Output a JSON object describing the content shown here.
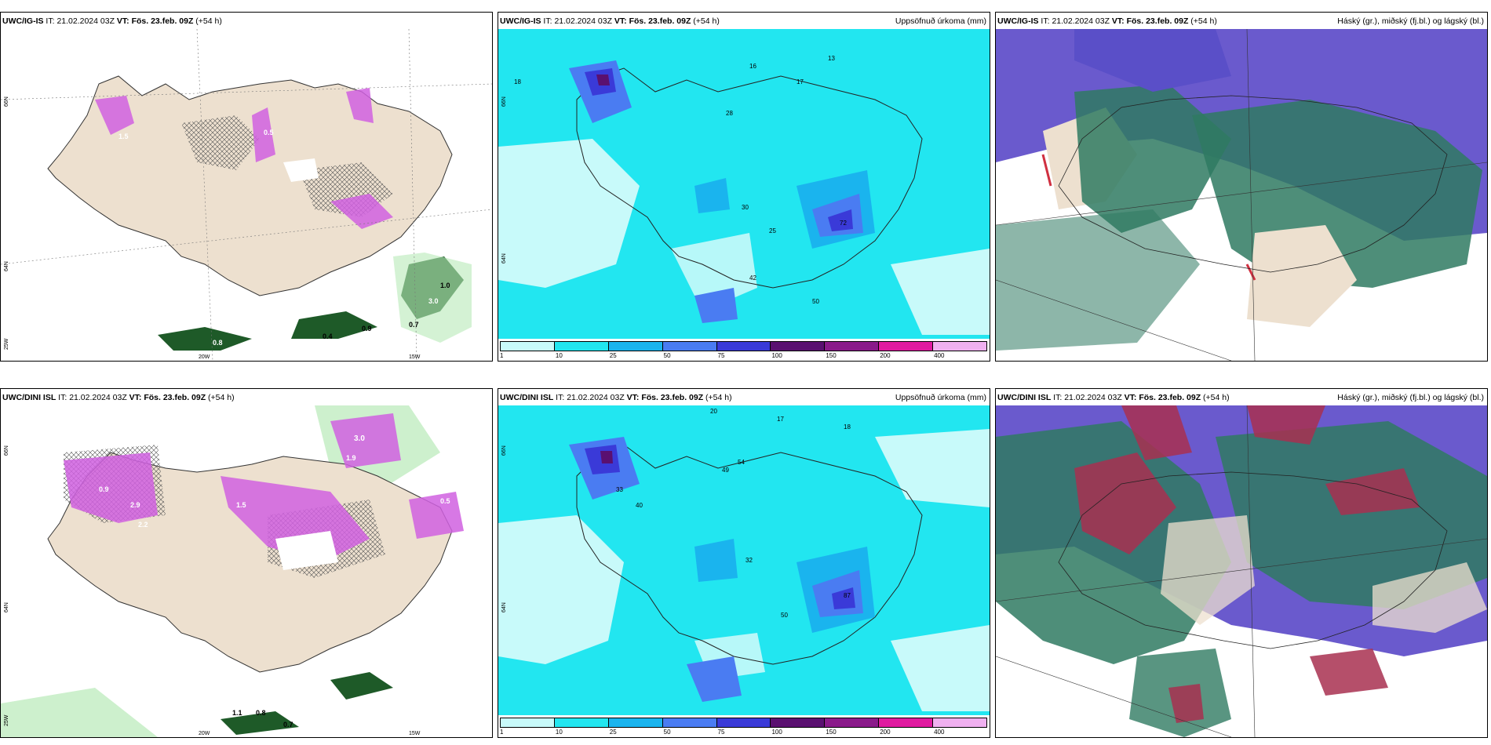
{
  "panels": [
    {
      "id": "ig-cloud",
      "model": "UWC/IG-IS",
      "it_label": "IT:",
      "it_value": "21.02.2024 03Z",
      "vt_label": "VT:",
      "vt_value": "Fös. 23.feb. 09Z",
      "lead": "(+54 h)",
      "right_title": "",
      "lat_labels": [
        "66N",
        "64N",
        "25W"
      ],
      "lon_labels": [
        "20W",
        "15W"
      ],
      "values": [
        "1.5",
        "0.5",
        "1.0",
        "0.8",
        "3.0",
        "0.7",
        "0.9",
        "0.4"
      ]
    },
    {
      "id": "ig-precip",
      "model": "UWC/IG-IS",
      "it_label": "IT:",
      "it_value": "21.02.2024 03Z",
      "vt_label": "VT:",
      "vt_value": "Fös. 23.feb. 09Z",
      "lead": "(+54 h)",
      "right_title": "Uppsöfnuð úrkoma (mm)",
      "lat_labels": [
        "66N",
        "64N"
      ],
      "lon_labels": [],
      "values": [
        "18",
        "16",
        "28",
        "17",
        "13",
        "30",
        "25",
        "42",
        "50",
        "72"
      ]
    },
    {
      "id": "ig-clouds-layers",
      "model": "UWC/IG-IS",
      "it_label": "IT:",
      "it_value": "21.02.2024 03Z",
      "vt_label": "VT:",
      "vt_value": "Fös. 23.feb. 09Z",
      "lead": "(+54 h)",
      "right_title": "Háský (gr.), miðský (fj.bl.) og lágský (bl.)",
      "lat_labels": [],
      "lon_labels": [],
      "values": []
    },
    {
      "id": "dini-cloud",
      "model": "UWC/DINI ISL",
      "it_label": "IT:",
      "it_value": "21.02.2024 03Z",
      "vt_label": "VT:",
      "vt_value": "Fös. 23.feb. 09Z",
      "lead": "(+54 h)",
      "right_title": "",
      "lat_labels": [
        "66N",
        "64N",
        "25W"
      ],
      "lon_labels": [
        "20W",
        "15W"
      ],
      "values": [
        "3.0",
        "1.9",
        "2.9",
        "1.5",
        "0.9",
        "2.2",
        "0.5",
        "1.1",
        "0.8",
        "0.7"
      ]
    },
    {
      "id": "dini-precip",
      "model": "UWC/DINI ISL",
      "it_label": "IT:",
      "it_value": "21.02.2024 03Z",
      "vt_label": "VT:",
      "vt_value": "Fös. 23.feb. 09Z",
      "lead": "(+54 h)",
      "right_title": "Uppsöfnuð úrkoma (mm)",
      "lat_labels": [
        "66N",
        "64N"
      ],
      "lon_labels": [],
      "values": [
        "20",
        "17",
        "18",
        "33",
        "40",
        "49",
        "54",
        "32",
        "50",
        "87"
      ]
    },
    {
      "id": "dini-clouds-layers",
      "model": "UWC/DINI ISL",
      "it_label": "IT:",
      "it_value": "21.02.2024 03Z",
      "vt_label": "VT:",
      "vt_value": "Fös. 23.feb. 09Z",
      "lead": "(+54 h)",
      "right_title": "Háský (gr.), miðský (fj.bl.) og lágský (bl.)",
      "lat_labels": [],
      "lon_labels": [],
      "values": []
    }
  ],
  "colorbar": {
    "levels": [
      "1",
      "10",
      "25",
      "50",
      "75",
      "100",
      "150",
      "200",
      "400"
    ],
    "colors": [
      "#c8fafa",
      "#22e6f0",
      "#1ab4ee",
      "#4a7cf2",
      "#3a3ad8",
      "#5a1070",
      "#8a1a8a",
      "#e01aa0",
      "#f0b0f0"
    ]
  },
  "colors": {
    "land": "#ede0cf",
    "ocean_precip": "#00e8f0",
    "cloud_high": "#6a5acd",
    "cloud_mid": "#2f7a62",
    "cloud_low": "#a83050",
    "magenta": "#d060e0",
    "dark_green": "#1e5a28",
    "light_green": "#b8eab8"
  }
}
